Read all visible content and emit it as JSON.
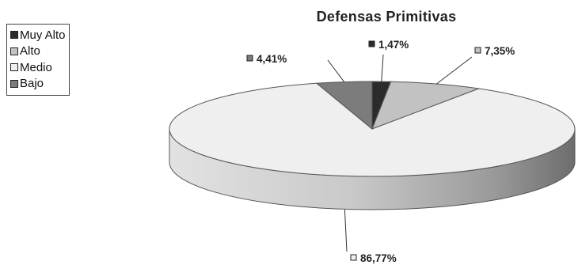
{
  "chart_data": {
    "type": "pie",
    "title": "Defensas Primitivas",
    "categories": [
      "Muy Alto",
      "Alto",
      "Medio",
      "Bajo"
    ],
    "values": [
      1.47,
      7.35,
      86.77,
      4.41
    ],
    "data_labels": [
      "1,47%",
      "7,35%",
      "86,77%",
      "4,41%"
    ],
    "colors": [
      "#2b2b2b",
      "#c2c2c2",
      "#efefef",
      "#7c7c7c"
    ],
    "legend_position": "top-left",
    "style": "3d"
  }
}
